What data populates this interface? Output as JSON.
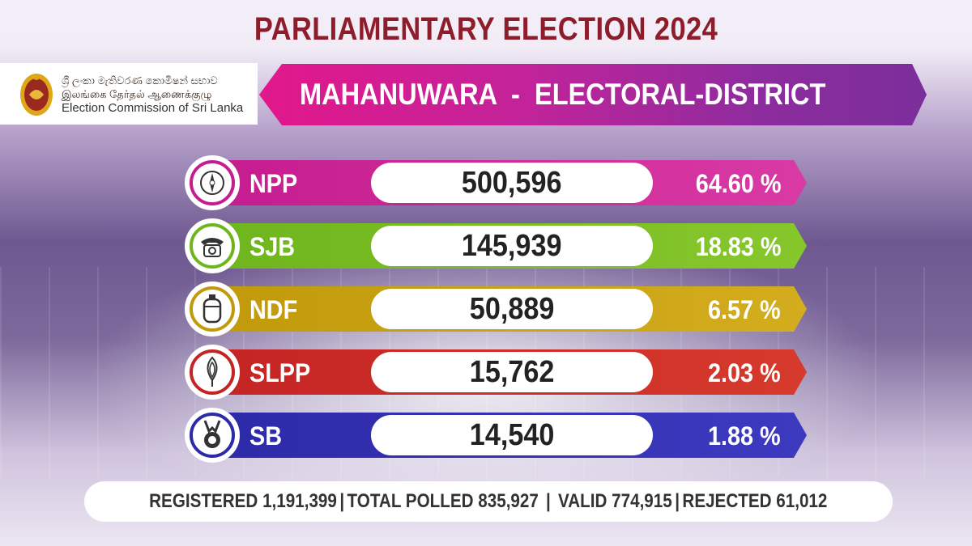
{
  "title": "PARLIAMENTARY ELECTION 2024",
  "logo": {
    "line_si": "ශ්‍රී ලංකා මැතිවරණ කොමිෂන් සභාව",
    "line_ta": "இலங்கை தேர்தல் ஆணைக்குழு",
    "line_en": "Election Commission of Sri Lanka"
  },
  "district": "MAHANUWARA  -  ELECTORAL-DISTRICT",
  "results": [
    {
      "party": "NPP",
      "votes": "500,596",
      "percent": "64.60 %",
      "color": "#c51c8f",
      "color2": "#d93aa4",
      "icon": "compass-icon"
    },
    {
      "party": "SJB",
      "votes": "145,939",
      "percent": "18.83 %",
      "color": "#6fb51d",
      "color2": "#86c72c",
      "icon": "telephone-icon"
    },
    {
      "party": "NDF",
      "votes": "50,889",
      "percent": "6.57 %",
      "color": "#c19a0c",
      "color2": "#d3ad1e",
      "icon": "gas-cylinder-icon"
    },
    {
      "party": "SLPP",
      "votes": "15,762",
      "percent": "2.03 %",
      "color": "#c42424",
      "color2": "#d63a2c",
      "icon": "lotus-bud-icon"
    },
    {
      "party": "SB",
      "votes": "14,540",
      "percent": "1.88 %",
      "color": "#2d2aa8",
      "color2": "#3d3ac0",
      "icon": "medal-icon"
    }
  ],
  "summary": {
    "registered_label": "REGISTERED",
    "registered": "1,191,399",
    "polled_label": "TOTAL POLLED",
    "polled": "835,927",
    "valid_label": "VALID",
    "valid": "774,915",
    "rejected_label": "REJECTED",
    "rejected": "61,012"
  }
}
